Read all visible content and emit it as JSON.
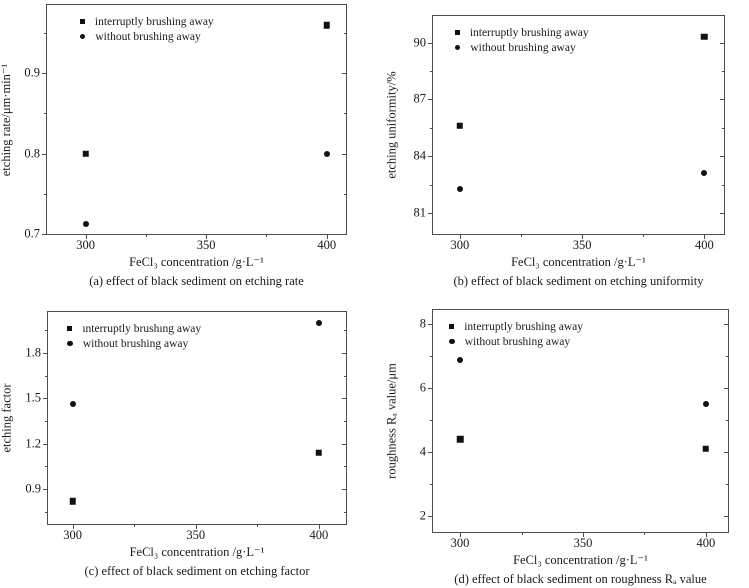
{
  "figure": {
    "background": "#ffffff",
    "ink_color": "#1a1a1a",
    "axis_color": "#4d4d4d",
    "marker_color": "#111111"
  },
  "chart_data": [
    {
      "id": "a",
      "type": "scatter",
      "caption": "(a) effect of black sediment on etching rate",
      "xlabel": "FeCl₃ concentration /g·L⁻¹",
      "ylabel": "etching rate/μm·min⁻¹",
      "x": {
        "lim": [
          284,
          408
        ],
        "ticks": [
          [
            300,
            "300"
          ],
          [
            350,
            "350"
          ],
          [
            400,
            "400"
          ]
        ],
        "minor": [
          325,
          375
        ]
      },
      "y": {
        "lim": [
          0.7,
          0.985
        ],
        "ticks": [
          [
            0.7,
            "0.7"
          ],
          [
            0.8,
            "0.8"
          ],
          [
            0.9,
            "0.9"
          ]
        ],
        "minor": [
          0.75,
          0.85,
          0.95
        ]
      },
      "legend_position": "top-left",
      "series": [
        {
          "name": "interruptly brushing away",
          "marker": "square",
          "points": [
            [
              300,
              0.8
            ],
            [
              400,
              0.96
            ]
          ]
        },
        {
          "name": "without brushing away",
          "marker": "circle",
          "points": [
            [
              300,
              0.712
            ],
            [
              400,
              0.8
            ]
          ]
        }
      ]
    },
    {
      "id": "b",
      "type": "scatter",
      "caption": "(b) effect of black sediment on etching uniformity",
      "xlabel": "FeCl₃ concentration /g·L⁻¹",
      "ylabel": "etching uniformity/%",
      "x": {
        "lim": [
          289,
          408
        ],
        "ticks": [
          [
            300,
            "300"
          ],
          [
            350,
            "350"
          ],
          [
            400,
            "400"
          ]
        ],
        "minor": [
          325,
          375
        ]
      },
      "y": {
        "lim": [
          79.9,
          91.4
        ],
        "ticks": [
          [
            81,
            "81"
          ],
          [
            84,
            "84"
          ],
          [
            87,
            "87"
          ],
          [
            90,
            "90"
          ]
        ],
        "minor": [
          82.5,
          85.5,
          88.5
        ]
      },
      "legend_position": "top-left",
      "series": [
        {
          "name": "interruptly brushing away",
          "marker": "square",
          "points": [
            [
              300,
              85.6
            ],
            [
              400,
              90.3
            ]
          ]
        },
        {
          "name": "without brushing away",
          "marker": "circle",
          "points": [
            [
              300,
              82.3
            ],
            [
              400,
              83.1
            ]
          ]
        }
      ]
    },
    {
      "id": "c",
      "type": "scatter",
      "caption": "(c) effect of black sediment on etching factor",
      "xlabel": "FeCl₃ concentration /g·L⁻¹",
      "ylabel": "etching factor",
      "x": {
        "lim": [
          290,
          411
        ],
        "ticks": [
          [
            300,
            "300"
          ],
          [
            350,
            "350"
          ],
          [
            400,
            "400"
          ]
        ],
        "minor": [
          325,
          375
        ]
      },
      "y": {
        "lim": [
          0.67,
          2.07
        ],
        "ticks": [
          [
            0.9,
            "0.9"
          ],
          [
            1.2,
            "1.2"
          ],
          [
            1.5,
            "1.5"
          ],
          [
            1.8,
            "1.8"
          ]
        ],
        "minor": [
          0.75,
          1.05,
          1.35,
          1.65,
          1.95
        ]
      },
      "legend_position": "top-left",
      "series": [
        {
          "name": "ınterruptly brushıng away",
          "marker": "square",
          "points": [
            [
              300,
              0.82
            ],
            [
              400,
              1.14
            ]
          ]
        },
        {
          "name": "without brushing away",
          "marker": "circle",
          "points": [
            [
              300,
              1.46
            ],
            [
              400,
              2.0
            ]
          ]
        }
      ]
    },
    {
      "id": "d",
      "type": "scatter",
      "caption": "(d) effect of black sediment on roughness Rₐ value",
      "xlabel": "FeCl₃ concentration /g·L⁻¹",
      "ylabel": "roughness Rₐ value/μm",
      "x": {
        "lim": [
          289,
          409
        ],
        "ticks": [
          [
            300,
            "300"
          ],
          [
            350,
            "350"
          ],
          [
            400,
            "400"
          ]
        ],
        "minor": [
          325,
          375
        ]
      },
      "y": {
        "lim": [
          1.5,
          8.45
        ],
        "ticks": [
          [
            2,
            "2"
          ],
          [
            4,
            "4"
          ],
          [
            6,
            "6"
          ],
          [
            8,
            "8"
          ]
        ],
        "minor": [
          3,
          5,
          7
        ]
      },
      "legend_position": "top-left",
      "series": [
        {
          "name": "interruptly brushing away",
          "marker": "square",
          "points": [
            [
              300,
              4.4
            ],
            [
              400,
              4.1
            ]
          ]
        },
        {
          "name": "without brushing away",
          "marker": "circle",
          "points": [
            [
              300,
              6.9
            ],
            [
              400,
              5.5
            ]
          ]
        }
      ]
    }
  ]
}
